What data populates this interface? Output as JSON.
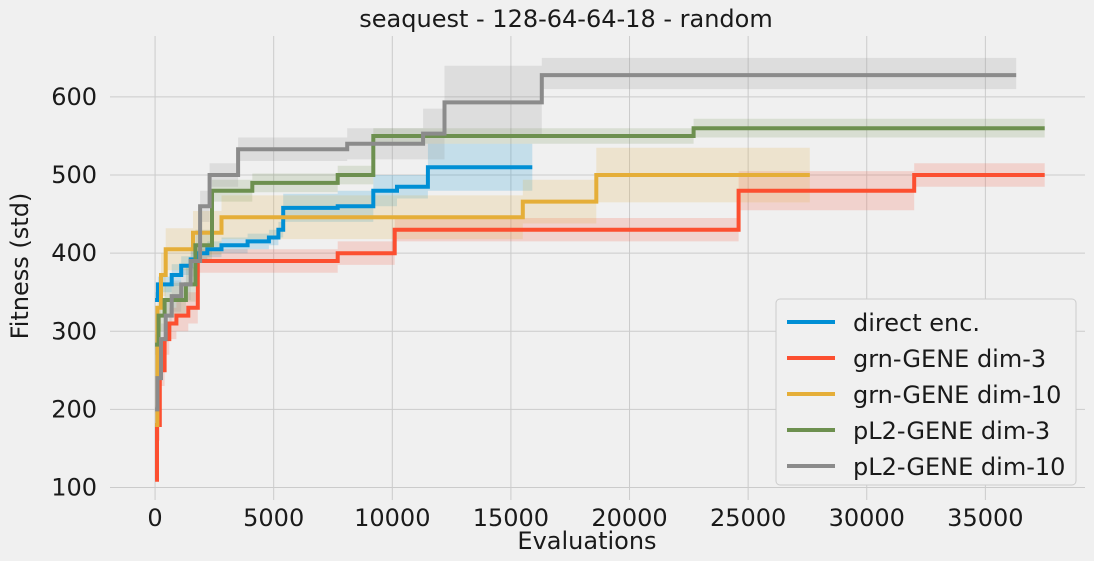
{
  "chart_data": {
    "type": "line",
    "title": "seaquest - 128-64-64-18 - random",
    "xlabel": "Evaluations",
    "ylabel": "Fitness (std)",
    "xlim": [
      -1900,
      39200
    ],
    "ylim": [
      84,
      678
    ],
    "xticks": [
      0,
      5000,
      10000,
      15000,
      20000,
      25000,
      30000,
      35000
    ],
    "yticks": [
      100,
      200,
      300,
      400,
      500,
      600
    ],
    "grid": true,
    "legend_position": "bottom-right",
    "series": [
      {
        "name": "direct enc.",
        "color": "#008fd5",
        "x": [
          0,
          120,
          350,
          700,
          1100,
          1500,
          1800,
          2200,
          2800,
          3900,
          4800,
          5200,
          5400,
          7700,
          9200,
          10200,
          11500,
          15900
        ],
        "y": [
          340,
          360,
          360,
          372,
          384,
          392,
          400,
          405,
          410,
          415,
          420,
          430,
          458,
          460,
          480,
          485,
          510,
          510
        ],
        "lower": [
          340,
          350,
          350,
          358,
          372,
          380,
          390,
          395,
          400,
          405,
          410,
          420,
          440,
          440,
          460,
          470,
          480,
          480
        ],
        "upper": [
          350,
          370,
          370,
          386,
          396,
          404,
          410,
          415,
          420,
          425,
          430,
          440,
          476,
          480,
          500,
          500,
          540,
          540
        ]
      },
      {
        "name": "grn-GENE dim-3",
        "color": "#fc4f30",
        "x": [
          0,
          80,
          200,
          400,
          600,
          900,
          1400,
          1800,
          7700,
          10100,
          24600,
          32000,
          37500
        ],
        "y": [
          110,
          180,
          250,
          290,
          310,
          320,
          330,
          390,
          400,
          430,
          480,
          500,
          500
        ],
        "lower": [
          110,
          160,
          230,
          270,
          290,
          300,
          310,
          375,
          385,
          415,
          455,
          485,
          485
        ],
        "upper": [
          120,
          200,
          270,
          310,
          330,
          340,
          350,
          405,
          415,
          445,
          505,
          515,
          515
        ]
      },
      {
        "name": "grn-GENE dim-10",
        "color": "#e5ae38",
        "x": [
          0,
          100,
          250,
          450,
          1600,
          2800,
          15500,
          18600,
          27600
        ],
        "y": [
          180,
          330,
          372,
          405,
          426,
          446,
          466,
          500,
          500
        ],
        "lower": [
          180,
          300,
          345,
          378,
          398,
          418,
          438,
          465,
          465
        ],
        "upper": [
          195,
          360,
          400,
          432,
          454,
          474,
          494,
          535,
          535
        ]
      },
      {
        "name": "pL2-GENE dim-3",
        "color": "#6d904f",
        "x": [
          0,
          150,
          400,
          1300,
          1700,
          2400,
          4100,
          7700,
          9200,
          22700,
          37500
        ],
        "y": [
          283,
          320,
          340,
          360,
          410,
          480,
          490,
          500,
          550,
          560,
          560
        ],
        "lower": [
          270,
          300,
          318,
          338,
          390,
          466,
          478,
          488,
          540,
          548,
          548
        ],
        "upper": [
          296,
          340,
          362,
          382,
          430,
          494,
          502,
          512,
          560,
          572,
          572
        ]
      },
      {
        "name": "pL2-GENE dim-10",
        "color": "#8b8b8b",
        "x": [
          0,
          100,
          250,
          450,
          700,
          1100,
          1500,
          1900,
          2300,
          3500,
          8100,
          11300,
          12200,
          16300,
          36300
        ],
        "y": [
          200,
          240,
          290,
          320,
          345,
          360,
          390,
          460,
          500,
          533,
          540,
          553,
          593,
          628,
          628
        ],
        "lower": [
          195,
          225,
          270,
          300,
          325,
          340,
          370,
          440,
          485,
          518,
          520,
          520,
          550,
          610,
          610
        ],
        "upper": [
          205,
          255,
          310,
          340,
          365,
          380,
          410,
          480,
          515,
          548,
          560,
          585,
          640,
          650,
          650
        ]
      }
    ]
  }
}
